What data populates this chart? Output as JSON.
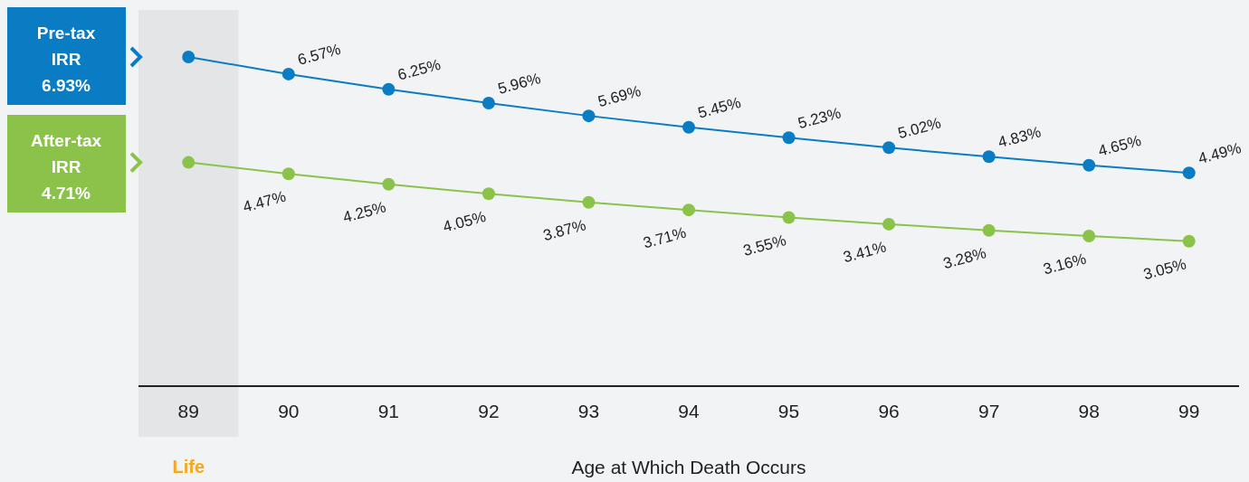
{
  "chart_data": {
    "type": "line",
    "xlabel": "Age at Which Death Occurs",
    "categories": [
      "89",
      "90",
      "91",
      "92",
      "93",
      "94",
      "95",
      "96",
      "97",
      "98",
      "99"
    ],
    "tick_labels": "x",
    "annotations": [
      "6.93%",
      "4.71%"
    ],
    "grid": false,
    "legend": "left",
    "marker": "circle",
    "line_style": "solid",
    "bands": [
      {
        "axis": "x",
        "from": "89",
        "to": "89",
        "label": "Life",
        "color": "#e4e5e7"
      }
    ],
    "series": [
      {
        "name": "Pre-tax IRR",
        "color": "#0a7cc4",
        "values": [
          6.93,
          6.57,
          6.25,
          5.96,
          5.69,
          5.45,
          5.23,
          5.02,
          4.83,
          4.65,
          4.49
        ],
        "value_labels": [
          null,
          "6.57%",
          "6.25%",
          "5.96%",
          "5.69%",
          "5.45%",
          "5.23%",
          "5.02%",
          "4.83%",
          "4.65%",
          "4.49%"
        ]
      },
      {
        "name": "After-tax IRR",
        "color": "#8bc34a",
        "values": [
          4.71,
          4.47,
          4.25,
          4.05,
          3.87,
          3.71,
          3.55,
          3.41,
          3.28,
          3.16,
          3.05
        ],
        "value_labels": [
          null,
          "4.47%",
          "4.25%",
          "4.05%",
          "3.87%",
          "3.71%",
          "3.55%",
          "3.41%",
          "3.28%",
          "3.16%",
          "3.05%"
        ]
      }
    ]
  }
}
